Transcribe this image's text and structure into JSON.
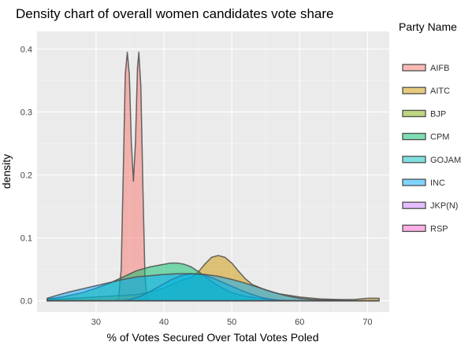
{
  "chart_data": {
    "type": "density",
    "title": "Density chart of overall women candidates vote share",
    "xlabel": "% of Votes Secured Over Total Votes Poled",
    "ylabel": "density",
    "xlim": [
      21.3,
      73.2
    ],
    "ylim": [
      -0.018,
      0.428
    ],
    "x_ticks": [
      30,
      40,
      50,
      60,
      70
    ],
    "x_tick_labels": [
      "30",
      "40",
      "50",
      "60",
      "70"
    ],
    "y_ticks": [
      0.0,
      0.1,
      0.2,
      0.3,
      0.4
    ],
    "y_tick_labels": [
      "0.0",
      "0.1",
      "0.2",
      "0.3",
      "0.4"
    ],
    "grid": true,
    "legend": {
      "title": "Party Name",
      "placement": "right"
    },
    "series": [
      {
        "name": "AIFB",
        "color": "#F8766D",
        "points": [
          [
            32.9,
            0
          ],
          [
            33.3,
            0.004
          ],
          [
            33.7,
            0.05
          ],
          [
            34.0,
            0.2
          ],
          [
            34.3,
            0.36
          ],
          [
            34.6,
            0.395
          ],
          [
            34.9,
            0.36
          ],
          [
            35.2,
            0.25
          ],
          [
            35.5,
            0.19
          ],
          [
            35.8,
            0.25
          ],
          [
            36.1,
            0.37
          ],
          [
            36.3,
            0.395
          ],
          [
            36.6,
            0.34
          ],
          [
            36.9,
            0.18
          ],
          [
            37.2,
            0.04
          ],
          [
            37.5,
            0.003
          ],
          [
            37.9,
            0
          ]
        ]
      },
      {
        "name": "AITC",
        "color": "#CD9600",
        "points": [
          [
            22.8,
            0.002
          ],
          [
            25,
            0.003
          ],
          [
            30,
            0.006
          ],
          [
            33,
            0.008
          ],
          [
            36,
            0.01
          ],
          [
            38,
            0.014
          ],
          [
            40,
            0.02
          ],
          [
            42,
            0.03
          ],
          [
            43,
            0.034
          ],
          [
            44,
            0.037
          ],
          [
            45,
            0.045
          ],
          [
            46,
            0.058
          ],
          [
            47,
            0.069
          ],
          [
            48,
            0.072
          ],
          [
            49,
            0.069
          ],
          [
            50,
            0.06
          ],
          [
            51,
            0.047
          ],
          [
            52,
            0.035
          ],
          [
            53,
            0.026
          ],
          [
            55,
            0.017
          ],
          [
            57,
            0.011
          ],
          [
            60,
            0.006
          ],
          [
            63,
            0.003
          ],
          [
            66,
            0.002
          ],
          [
            68,
            0.002
          ],
          [
            70,
            0.004
          ],
          [
            71.7,
            0.004
          ]
        ]
      },
      {
        "name": "BJP",
        "color": "#7CAE00",
        "points": [
          [
            22.8,
            0
          ],
          [
            71.7,
            0
          ]
        ]
      },
      {
        "name": "CPM",
        "color": "#00BE67",
        "points": [
          [
            22.8,
            0.003
          ],
          [
            25,
            0.006
          ],
          [
            28,
            0.013
          ],
          [
            30,
            0.02
          ],
          [
            32,
            0.028
          ],
          [
            34,
            0.038
          ],
          [
            36,
            0.048
          ],
          [
            38,
            0.054
          ],
          [
            40,
            0.058
          ],
          [
            41,
            0.06
          ],
          [
            42,
            0.06
          ],
          [
            43,
            0.058
          ],
          [
            44,
            0.054
          ],
          [
            45,
            0.047
          ],
          [
            46,
            0.039
          ],
          [
            47,
            0.031
          ],
          [
            48,
            0.024
          ],
          [
            49,
            0.018
          ],
          [
            50,
            0.013
          ],
          [
            52,
            0.007
          ],
          [
            54,
            0.004
          ],
          [
            57,
            0.001
          ],
          [
            60,
            0
          ]
        ]
      },
      {
        "name": "GOJAM",
        "color": "#00BFC4",
        "points": [
          [
            33.5,
            0
          ],
          [
            35,
            0.002
          ],
          [
            36.5,
            0.007
          ],
          [
            38,
            0.015
          ],
          [
            39.5,
            0.024
          ],
          [
            41,
            0.033
          ],
          [
            42.5,
            0.04
          ],
          [
            44,
            0.043
          ],
          [
            45.5,
            0.042
          ],
          [
            47,
            0.037
          ],
          [
            48.5,
            0.03
          ],
          [
            50,
            0.023
          ],
          [
            51.5,
            0.016
          ],
          [
            53,
            0.01
          ],
          [
            54.5,
            0.005
          ],
          [
            56,
            0.002
          ],
          [
            57.5,
            0
          ]
        ]
      },
      {
        "name": "INC",
        "color": "#00A9FF",
        "points": [
          [
            22.8,
            0.004
          ],
          [
            24,
            0.008
          ],
          [
            26,
            0.014
          ],
          [
            28,
            0.019
          ],
          [
            30,
            0.024
          ],
          [
            32,
            0.029
          ],
          [
            34,
            0.034
          ],
          [
            36,
            0.038
          ],
          [
            38,
            0.04
          ],
          [
            40,
            0.042
          ],
          [
            42,
            0.043
          ],
          [
            44,
            0.043
          ],
          [
            46,
            0.042
          ],
          [
            48,
            0.039
          ],
          [
            50,
            0.034
          ],
          [
            52,
            0.028
          ],
          [
            54,
            0.021
          ],
          [
            56,
            0.014
          ],
          [
            58,
            0.008
          ],
          [
            60,
            0.004
          ],
          [
            62,
            0.002
          ],
          [
            65,
            0.001
          ],
          [
            67,
            0
          ]
        ]
      },
      {
        "name": "JKP(N)",
        "color": "#C77CFF",
        "points": [
          [
            22.8,
            0
          ],
          [
            71.7,
            0
          ]
        ]
      },
      {
        "name": "RSP",
        "color": "#FF61CC",
        "points": [
          [
            22.8,
            0
          ],
          [
            71.7,
            0
          ]
        ]
      }
    ]
  }
}
